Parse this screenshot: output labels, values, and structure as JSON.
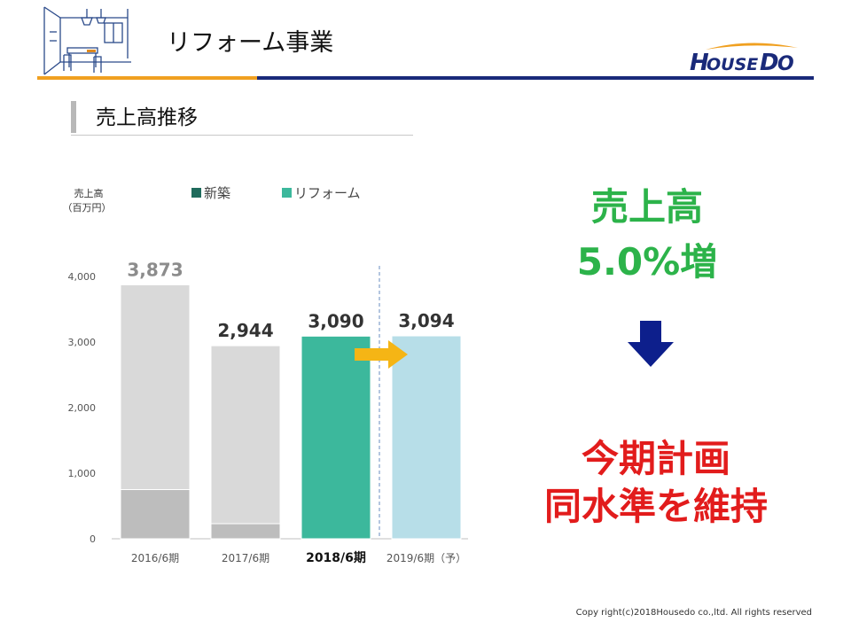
{
  "header": {
    "title": "リフォーム事業",
    "brand_logo_text": "HOUSEDO"
  },
  "section": {
    "subtitle": "売上高推移"
  },
  "chart_data": {
    "type": "bar",
    "stacked": true,
    "ylabel_line1": "売上高",
    "ylabel_line2": "（百万円）",
    "categories": [
      "2016/6期",
      "2017/6期",
      "2018/6期",
      "2019/6期（予）"
    ],
    "highlight_category": "2018/6期",
    "series": [
      {
        "name": "新築",
        "values": [
          750,
          230,
          0,
          0
        ]
      },
      {
        "name": "リフォーム",
        "values": [
          3123,
          2714,
          3090,
          3094
        ]
      }
    ],
    "totals": [
      "3,873",
      "2,944",
      "3,090",
      "3,094"
    ],
    "yticks": [
      "0",
      "1,000",
      "2,000",
      "3,000",
      "4,000"
    ],
    "ylim": [
      0,
      4200
    ],
    "legend_position": "top",
    "grid": false,
    "colors": {
      "past_shinchiku": "#bdbdbd",
      "past_reform": "#d9d9d9",
      "current": "#3cb89c",
      "forecast": "#b7dee8",
      "legend_shinchiku": "#1f6b5c",
      "legend_reform": "#3cb89c",
      "arrow": "#f5b515"
    }
  },
  "highlight": {
    "line1": "売上高",
    "line2": "5.0%増"
  },
  "plan": {
    "line1": "今期計画",
    "line2": "同水準を維持"
  },
  "footer": {
    "copyright": "Copy right(c)2018Housedo co.,ltd. All rights reserved"
  },
  "colors": {
    "accent_orange": "#f0a020",
    "accent_navy": "#1a2a7a",
    "highlight_green": "#2cb34a",
    "plan_red": "#e21c1c",
    "down_arrow": "#0d1f8c"
  }
}
